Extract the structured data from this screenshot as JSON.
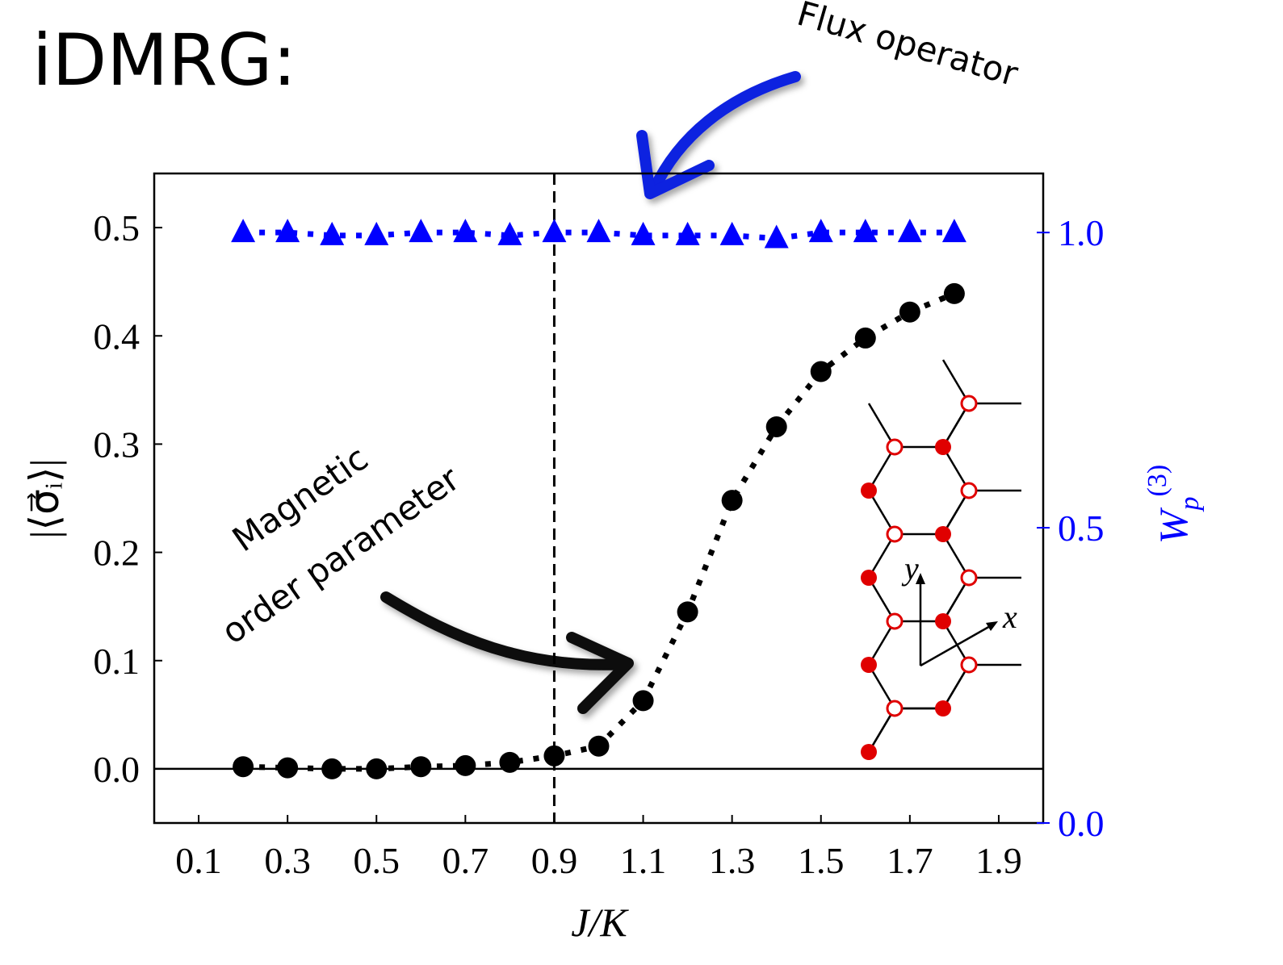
{
  "chart_data": {
    "type": "line",
    "title": "iDMRG:",
    "x_label": "J/K",
    "y_label": "|⟨σ⃗ᵢ⟩|",
    "y2_label": {
      "main": "W",
      "sub": "p",
      "sup": "(3)"
    },
    "x": [
      0.2,
      0.3,
      0.4,
      0.5,
      0.6,
      0.7,
      0.8,
      0.9,
      1.0,
      1.1,
      1.2,
      1.3,
      1.4,
      1.5,
      1.6,
      1.7,
      1.8
    ],
    "series": [
      {
        "color": "#000000",
        "marker": "circle",
        "axis": "y",
        "values": [
          0.002,
          0.001,
          0.0,
          0.0,
          0.002,
          0.003,
          0.006,
          0.012,
          0.021,
          0.063,
          0.145,
          0.248,
          0.316,
          0.367,
          0.398,
          0.422,
          0.439
        ]
      },
      {
        "color": "#0000ff",
        "marker": "triangle",
        "axis": "y2",
        "values": [
          1.0,
          1.0,
          0.995,
          0.995,
          1.0,
          1.0,
          0.995,
          1.0,
          1.0,
          0.995,
          0.995,
          0.995,
          0.99,
          1.0,
          1.0,
          1.0,
          1.0
        ]
      }
    ],
    "xlim": [
      0.0,
      2.0
    ],
    "xticks": [
      0.1,
      0.3,
      0.5,
      0.7,
      0.9,
      1.1,
      1.3,
      1.5,
      1.7,
      1.9
    ],
    "ylim": [
      -0.05,
      0.55
    ],
    "yticks": [
      {
        "value": 0,
        "label": "0.0"
      },
      0.1,
      0.2,
      0.3,
      0.4,
      0.5
    ],
    "y2lim": [
      0.0,
      1.1
    ],
    "y2ticks": [
      {
        "value": 0,
        "label": "0.0"
      },
      0.5,
      {
        "value": 1,
        "label": "1.0"
      }
    ],
    "y2_color": "#0000ff",
    "vline": 0.9,
    "hline": 0,
    "annotations": [
      {
        "text": "Flux operator",
        "color": "#0000ff"
      },
      {
        "text": "Magnetic",
        "color": "#000000"
      },
      {
        "text": "order parameter",
        "color": "#000000"
      }
    ],
    "inset": {
      "x_label": "x",
      "y_label": "y"
    }
  }
}
